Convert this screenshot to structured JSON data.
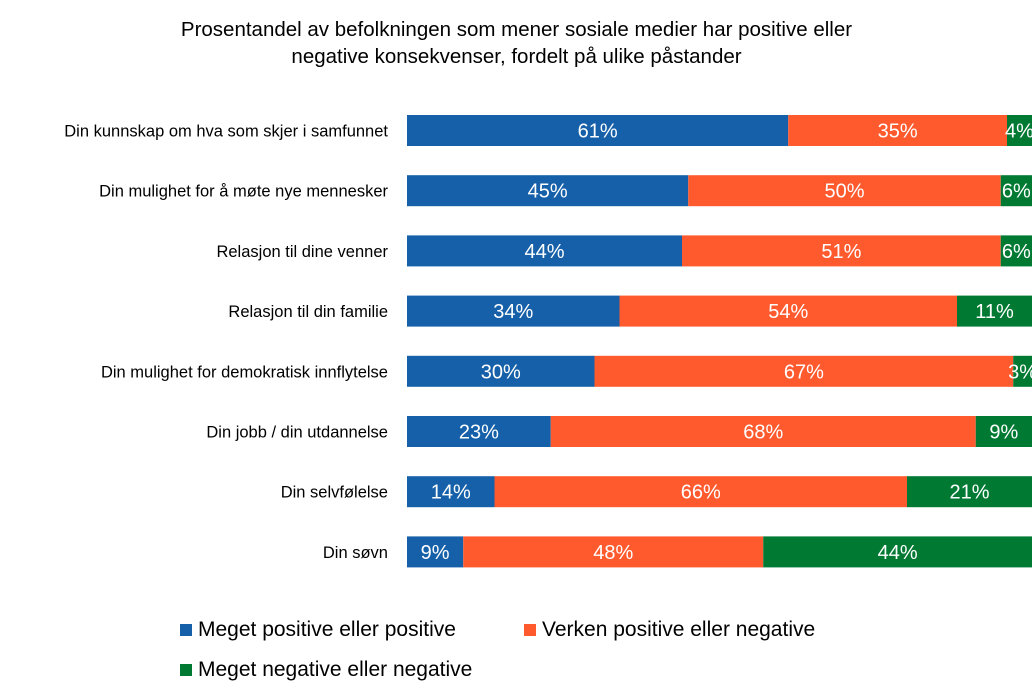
{
  "chart_data": {
    "type": "bar",
    "orientation": "horizontal",
    "stacked": true,
    "title_lines": [
      "Prosentandel av befolkningen som mener sosiale medier har positive eller",
      "negative konsekvenser, fordelt på ulike påstander"
    ],
    "categories": [
      "Din kunnskap om hva som skjer i samfunnet",
      "Din mulighet for å møte nye mennesker",
      "Relasjon til dine venner",
      "Relasjon til din familie",
      "Din mulighet for demokratisk innflytelse",
      "Din jobb / din utdannelse",
      "Din selvfølelse",
      "Din søvn"
    ],
    "series": [
      {
        "name": "Meget positive eller positive",
        "color": "#1560A8",
        "values": [
          61,
          45,
          44,
          34,
          30,
          23,
          14,
          9
        ],
        "labels": [
          "61%",
          "45%",
          "44%",
          "34%",
          "30%",
          "23%",
          "14%",
          "9%"
        ]
      },
      {
        "name": "Verken positive eller negative",
        "color": "#FF5A2E",
        "values": [
          35,
          50,
          51,
          54,
          67,
          68,
          66,
          48
        ],
        "labels": [
          "35%",
          "50%",
          "51%",
          "54%",
          "67%",
          "68%",
          "66%",
          "48%"
        ]
      },
      {
        "name": "Meget negative eller negative",
        "color": "#007A33",
        "values": [
          4,
          6,
          6,
          11,
          3,
          9,
          21,
          44
        ],
        "labels": [
          "4%",
          "6%",
          "6%",
          "11%",
          "3%",
          "9%",
          "21%",
          "44%"
        ]
      }
    ],
    "xlim": [
      0,
      100
    ],
    "grid": false,
    "legend_position": "bottom"
  }
}
